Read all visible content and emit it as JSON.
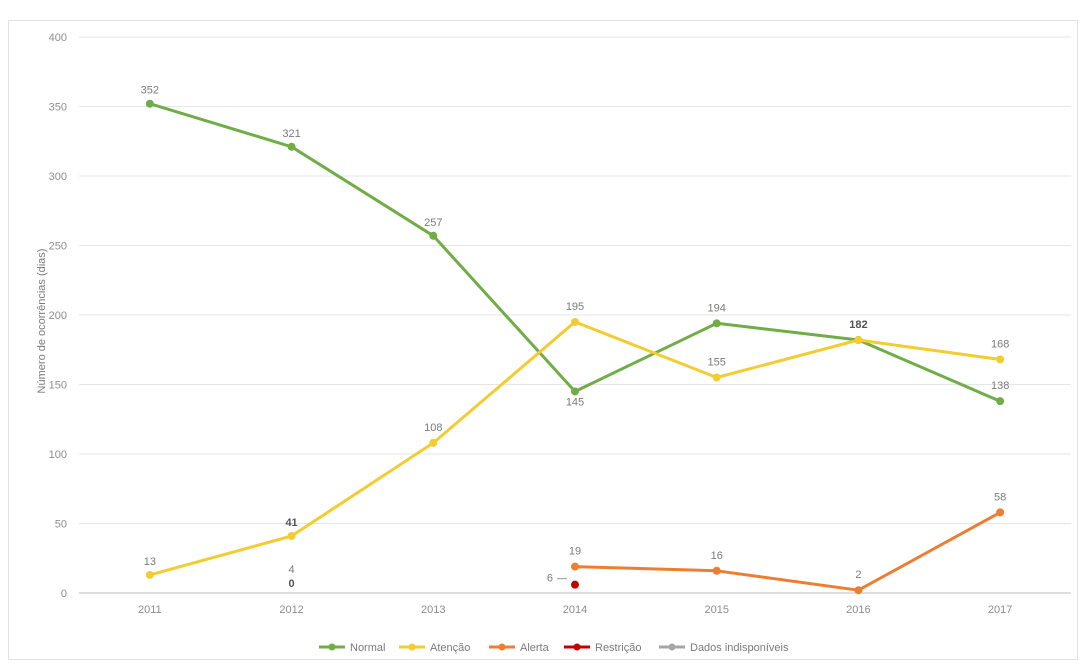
{
  "chart_data": {
    "type": "line",
    "title": "",
    "xlabel": "",
    "ylabel": "Número de ocorrências (dias)",
    "ylim": [
      0,
      400
    ],
    "yticks": [
      0,
      50,
      100,
      150,
      200,
      250,
      300,
      350,
      400
    ],
    "categories": [
      "2011",
      "2012",
      "2013",
      "2014",
      "2015",
      "2016",
      "2017"
    ],
    "grid": true,
    "legend_position": "bottom",
    "series": [
      {
        "name": "Normal",
        "color": "#70ad47",
        "values": [
          352,
          321,
          257,
          145,
          194,
          182,
          138
        ],
        "labels": [
          "352",
          "321",
          "257",
          "145",
          "194",
          "182",
          "138"
        ]
      },
      {
        "name": "Atenção",
        "color": "#f2cc30",
        "values": [
          13,
          41,
          108,
          195,
          155,
          182,
          168
        ],
        "labels": [
          "13",
          "41",
          "108",
          "195",
          "155",
          "182",
          "168"
        ]
      },
      {
        "name": "Alerta",
        "color": "#ed7d31",
        "values": [
          null,
          4,
          null,
          19,
          16,
          2,
          58
        ],
        "labels": [
          "",
          "4",
          "",
          "19",
          "16",
          "2",
          "58"
        ]
      },
      {
        "name": "Restrição",
        "color": "#c00000",
        "values": [
          null,
          0,
          null,
          6,
          null,
          null,
          null
        ],
        "labels": [
          "",
          "0",
          "",
          "6",
          "",
          "",
          ""
        ]
      },
      {
        "name": "Dados indisponíveis",
        "color": "#a5a5a5",
        "values": [
          null,
          null,
          null,
          null,
          null,
          null,
          null
        ],
        "labels": [
          "",
          "",
          "",
          "",
          "",
          "",
          ""
        ]
      }
    ]
  }
}
